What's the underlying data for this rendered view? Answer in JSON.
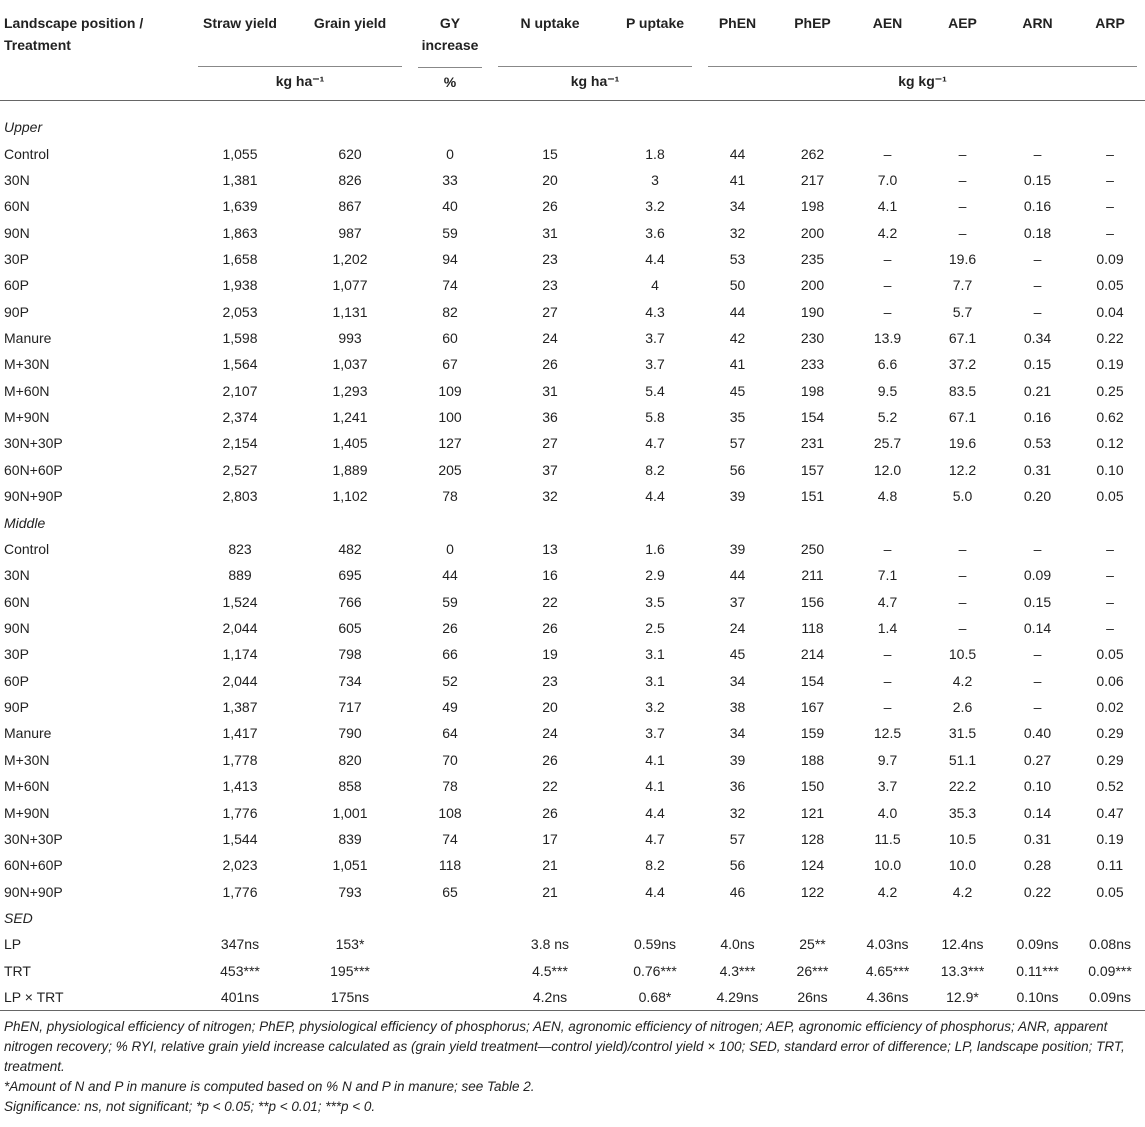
{
  "header": {
    "columns": [
      "Landscape position / Treatment",
      "Straw yield",
      "Grain yield",
      "GY increase",
      "N uptake",
      "P uptake",
      "PhEN",
      "PhEP",
      "AEN",
      "AEP",
      "ARN",
      "ARP"
    ],
    "units": [
      "kg ha⁻¹",
      "%",
      "kg ha⁻¹",
      "kg kg⁻¹"
    ]
  },
  "sections": [
    {
      "title": "Upper",
      "rows": [
        [
          "Control",
          "1,055",
          "620",
          "0",
          "15",
          "1.8",
          "44",
          "262",
          "–",
          "–",
          "–",
          "–"
        ],
        [
          "30N",
          "1,381",
          "826",
          "33",
          "20",
          "3",
          "41",
          "217",
          "7.0",
          "–",
          "0.15",
          "–"
        ],
        [
          "60N",
          "1,639",
          "867",
          "40",
          "26",
          "3.2",
          "34",
          "198",
          "4.1",
          "–",
          "0.16",
          "–"
        ],
        [
          "90N",
          "1,863",
          "987",
          "59",
          "31",
          "3.6",
          "32",
          "200",
          "4.2",
          "–",
          "0.18",
          "–"
        ],
        [
          "30P",
          "1,658",
          "1,202",
          "94",
          "23",
          "4.4",
          "53",
          "235",
          "–",
          "19.6",
          "–",
          "0.09"
        ],
        [
          "60P",
          "1,938",
          "1,077",
          "74",
          "23",
          "4",
          "50",
          "200",
          "–",
          "7.7",
          "–",
          "0.05"
        ],
        [
          "90P",
          "2,053",
          "1,131",
          "82",
          "27",
          "4.3",
          "44",
          "190",
          "–",
          "5.7",
          "–",
          "0.04"
        ],
        [
          "Manure",
          "1,598",
          "993",
          "60",
          "24",
          "3.7",
          "42",
          "230",
          "13.9",
          "67.1",
          "0.34",
          "0.22"
        ],
        [
          "M+30N",
          "1,564",
          "1,037",
          "67",
          "26",
          "3.7",
          "41",
          "233",
          "6.6",
          "37.2",
          "0.15",
          "0.19"
        ],
        [
          "M+60N",
          "2,107",
          "1,293",
          "109",
          "31",
          "5.4",
          "45",
          "198",
          "9.5",
          "83.5",
          "0.21",
          "0.25"
        ],
        [
          "M+90N",
          "2,374",
          "1,241",
          "100",
          "36",
          "5.8",
          "35",
          "154",
          "5.2",
          "67.1",
          "0.16",
          "0.62"
        ],
        [
          "30N+30P",
          "2,154",
          "1,405",
          "127",
          "27",
          "4.7",
          "57",
          "231",
          "25.7",
          "19.6",
          "0.53",
          "0.12"
        ],
        [
          "60N+60P",
          "2,527",
          "1,889",
          "205",
          "37",
          "8.2",
          "56",
          "157",
          "12.0",
          "12.2",
          "0.31",
          "0.10"
        ],
        [
          "90N+90P",
          "2,803",
          "1,102",
          "78",
          "32",
          "4.4",
          "39",
          "151",
          "4.8",
          "5.0",
          "0.20",
          "0.05"
        ]
      ]
    },
    {
      "title": "Middle",
      "rows": [
        [
          "Control",
          "823",
          "482",
          "0",
          "13",
          "1.6",
          "39",
          "250",
          "–",
          "–",
          "–",
          "–"
        ],
        [
          "30N",
          "889",
          "695",
          "44",
          "16",
          "2.9",
          "44",
          "211",
          "7.1",
          "–",
          "0.09",
          "–"
        ],
        [
          "60N",
          "1,524",
          "766",
          "59",
          "22",
          "3.5",
          "37",
          "156",
          "4.7",
          "–",
          "0.15",
          "–"
        ],
        [
          "90N",
          "2,044",
          "605",
          "26",
          "26",
          "2.5",
          "24",
          "118",
          "1.4",
          "–",
          "0.14",
          "–"
        ],
        [
          "30P",
          "1,174",
          "798",
          "66",
          "19",
          "3.1",
          "45",
          "214",
          "–",
          "10.5",
          "–",
          "0.05"
        ],
        [
          "60P",
          "2,044",
          "734",
          "52",
          "23",
          "3.1",
          "34",
          "154",
          "–",
          "4.2",
          "–",
          "0.06"
        ],
        [
          "90P",
          "1,387",
          "717",
          "49",
          "20",
          "3.2",
          "38",
          "167",
          "–",
          "2.6",
          "–",
          "0.02"
        ],
        [
          "Manure",
          "1,417",
          "790",
          "64",
          "24",
          "3.7",
          "34",
          "159",
          "12.5",
          "31.5",
          "0.40",
          "0.29"
        ],
        [
          "M+30N",
          "1,778",
          "820",
          "70",
          "26",
          "4.1",
          "39",
          "188",
          "9.7",
          "51.1",
          "0.27",
          "0.29"
        ],
        [
          "M+60N",
          "1,413",
          "858",
          "78",
          "22",
          "4.1",
          "36",
          "150",
          "3.7",
          "22.2",
          "0.10",
          "0.52"
        ],
        [
          "M+90N",
          "1,776",
          "1,001",
          "108",
          "26",
          "4.4",
          "32",
          "121",
          "4.0",
          "35.3",
          "0.14",
          "0.47"
        ],
        [
          "30N+30P",
          "1,544",
          "839",
          "74",
          "17",
          "4.7",
          "57",
          "128",
          "11.5",
          "10.5",
          "0.31",
          "0.19"
        ],
        [
          "60N+60P",
          "2,023",
          "1,051",
          "118",
          "21",
          "8.2",
          "56",
          "124",
          "10.0",
          "10.0",
          "0.28",
          "0.11"
        ],
        [
          "90N+90P",
          "1,776",
          "793",
          "65",
          "21",
          "4.4",
          "46",
          "122",
          "4.2",
          "4.2",
          "0.22",
          "0.05"
        ]
      ]
    },
    {
      "title": "SED",
      "rows": [
        [
          "LP",
          "347ns",
          "153*",
          null,
          "3.8 ns",
          "0.59ns",
          "4.0ns",
          "25**",
          "4.03ns",
          "12.4ns",
          "0.09ns",
          "0.08ns"
        ],
        [
          "TRT",
          "453***",
          "195***",
          null,
          "4.5***",
          "0.76***",
          "4.3***",
          "26***",
          "4.65***",
          "13.3***",
          "0.11***",
          "0.09***"
        ],
        [
          "LP × TRT",
          "401ns",
          "175ns",
          null,
          "4.2ns",
          "0.68*",
          "4.29ns",
          "26ns",
          "4.36ns",
          "12.9*",
          "0.10ns",
          "0.09ns"
        ]
      ]
    }
  ],
  "footnotes": [
    "PhEN, physiological efficiency of nitrogen; PhEP, physiological efficiency of phosphorus; AEN, agronomic efficiency of nitrogen; AEP, agronomic efficiency of phosphorus; ANR, apparent nitrogen recovery; % RYI, relative grain yield increase calculated as (grain yield treatment—control yield)/control yield × 100; SED, standard error of difference; LP, landscape position; TRT, treatment.",
    "*Amount of N and P in manure is computed based on % N and P in manure; see Table 2.",
    "Significance: ns, not significant; *p < 0.05; **p < 0.01; ***p < 0."
  ]
}
